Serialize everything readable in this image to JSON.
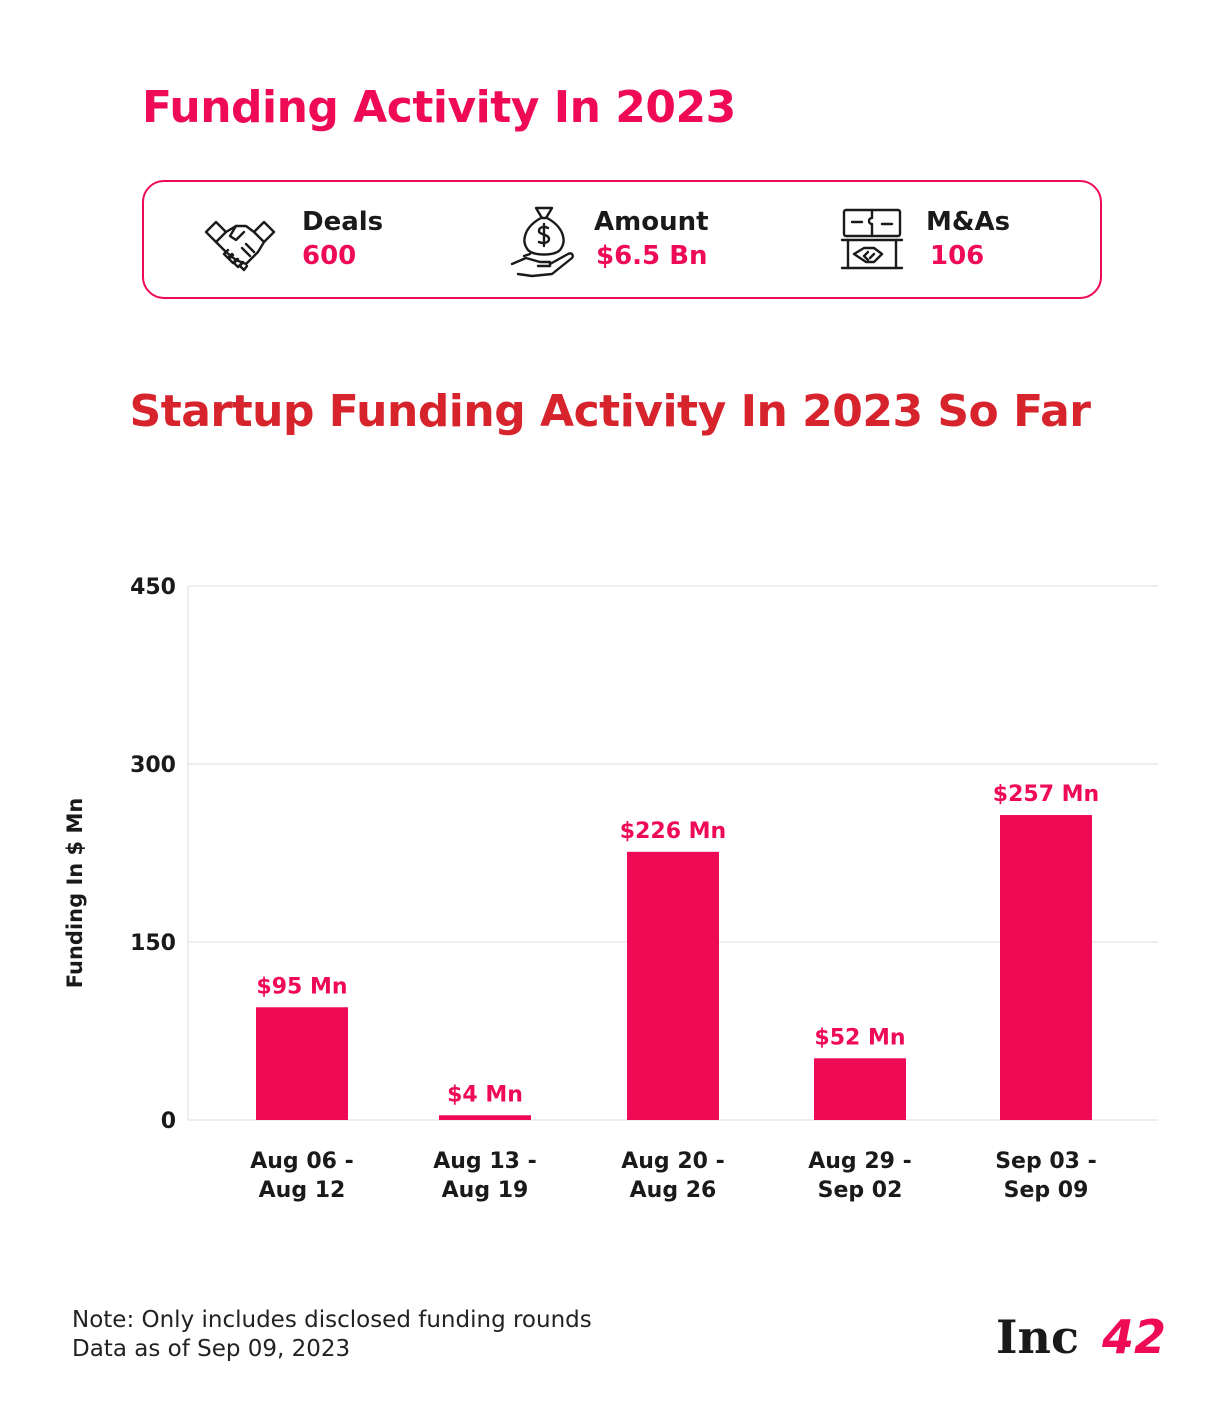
{
  "header": {
    "title": "Funding Activity In 2023"
  },
  "stats": [
    {
      "icon": "handshake-icon",
      "label": "Deals",
      "value": "600"
    },
    {
      "icon": "money-bag-hand-icon",
      "label": "Amount",
      "value": "$6.5 Bn"
    },
    {
      "icon": "handshake-puzzle-icon",
      "label": "M&As",
      "value": "106"
    }
  ],
  "colors": {
    "accent": "#ef0a55",
    "title_red": "#d6232c",
    "grid": "#dddddd"
  },
  "chart_data": {
    "type": "bar",
    "title": "Startup Funding Activity In 2023 So Far",
    "ylabel": "Funding In $ Mn",
    "xlabel": "",
    "ylim": [
      0,
      450
    ],
    "yticks": [
      0,
      150,
      300,
      450
    ],
    "grid": true,
    "categories": [
      [
        "Aug 06 -",
        "Aug 12"
      ],
      [
        "Aug 13 -",
        "Aug 19"
      ],
      [
        "Aug 20 -",
        "Aug 26"
      ],
      [
        "Aug 29 -",
        "Sep 02"
      ],
      [
        "Sep 03 -",
        "Sep 09"
      ]
    ],
    "values": [
      95,
      4,
      226,
      52,
      257
    ],
    "data_labels": [
      "$95 Mn",
      "$4 Mn",
      "$226 Mn",
      "$52 Mn",
      "$257 Mn"
    ]
  },
  "notes": [
    "Note: Only includes disclosed funding rounds",
    "Data as of Sep 09, 2023"
  ],
  "brand": {
    "logo_text": "Inc42"
  }
}
